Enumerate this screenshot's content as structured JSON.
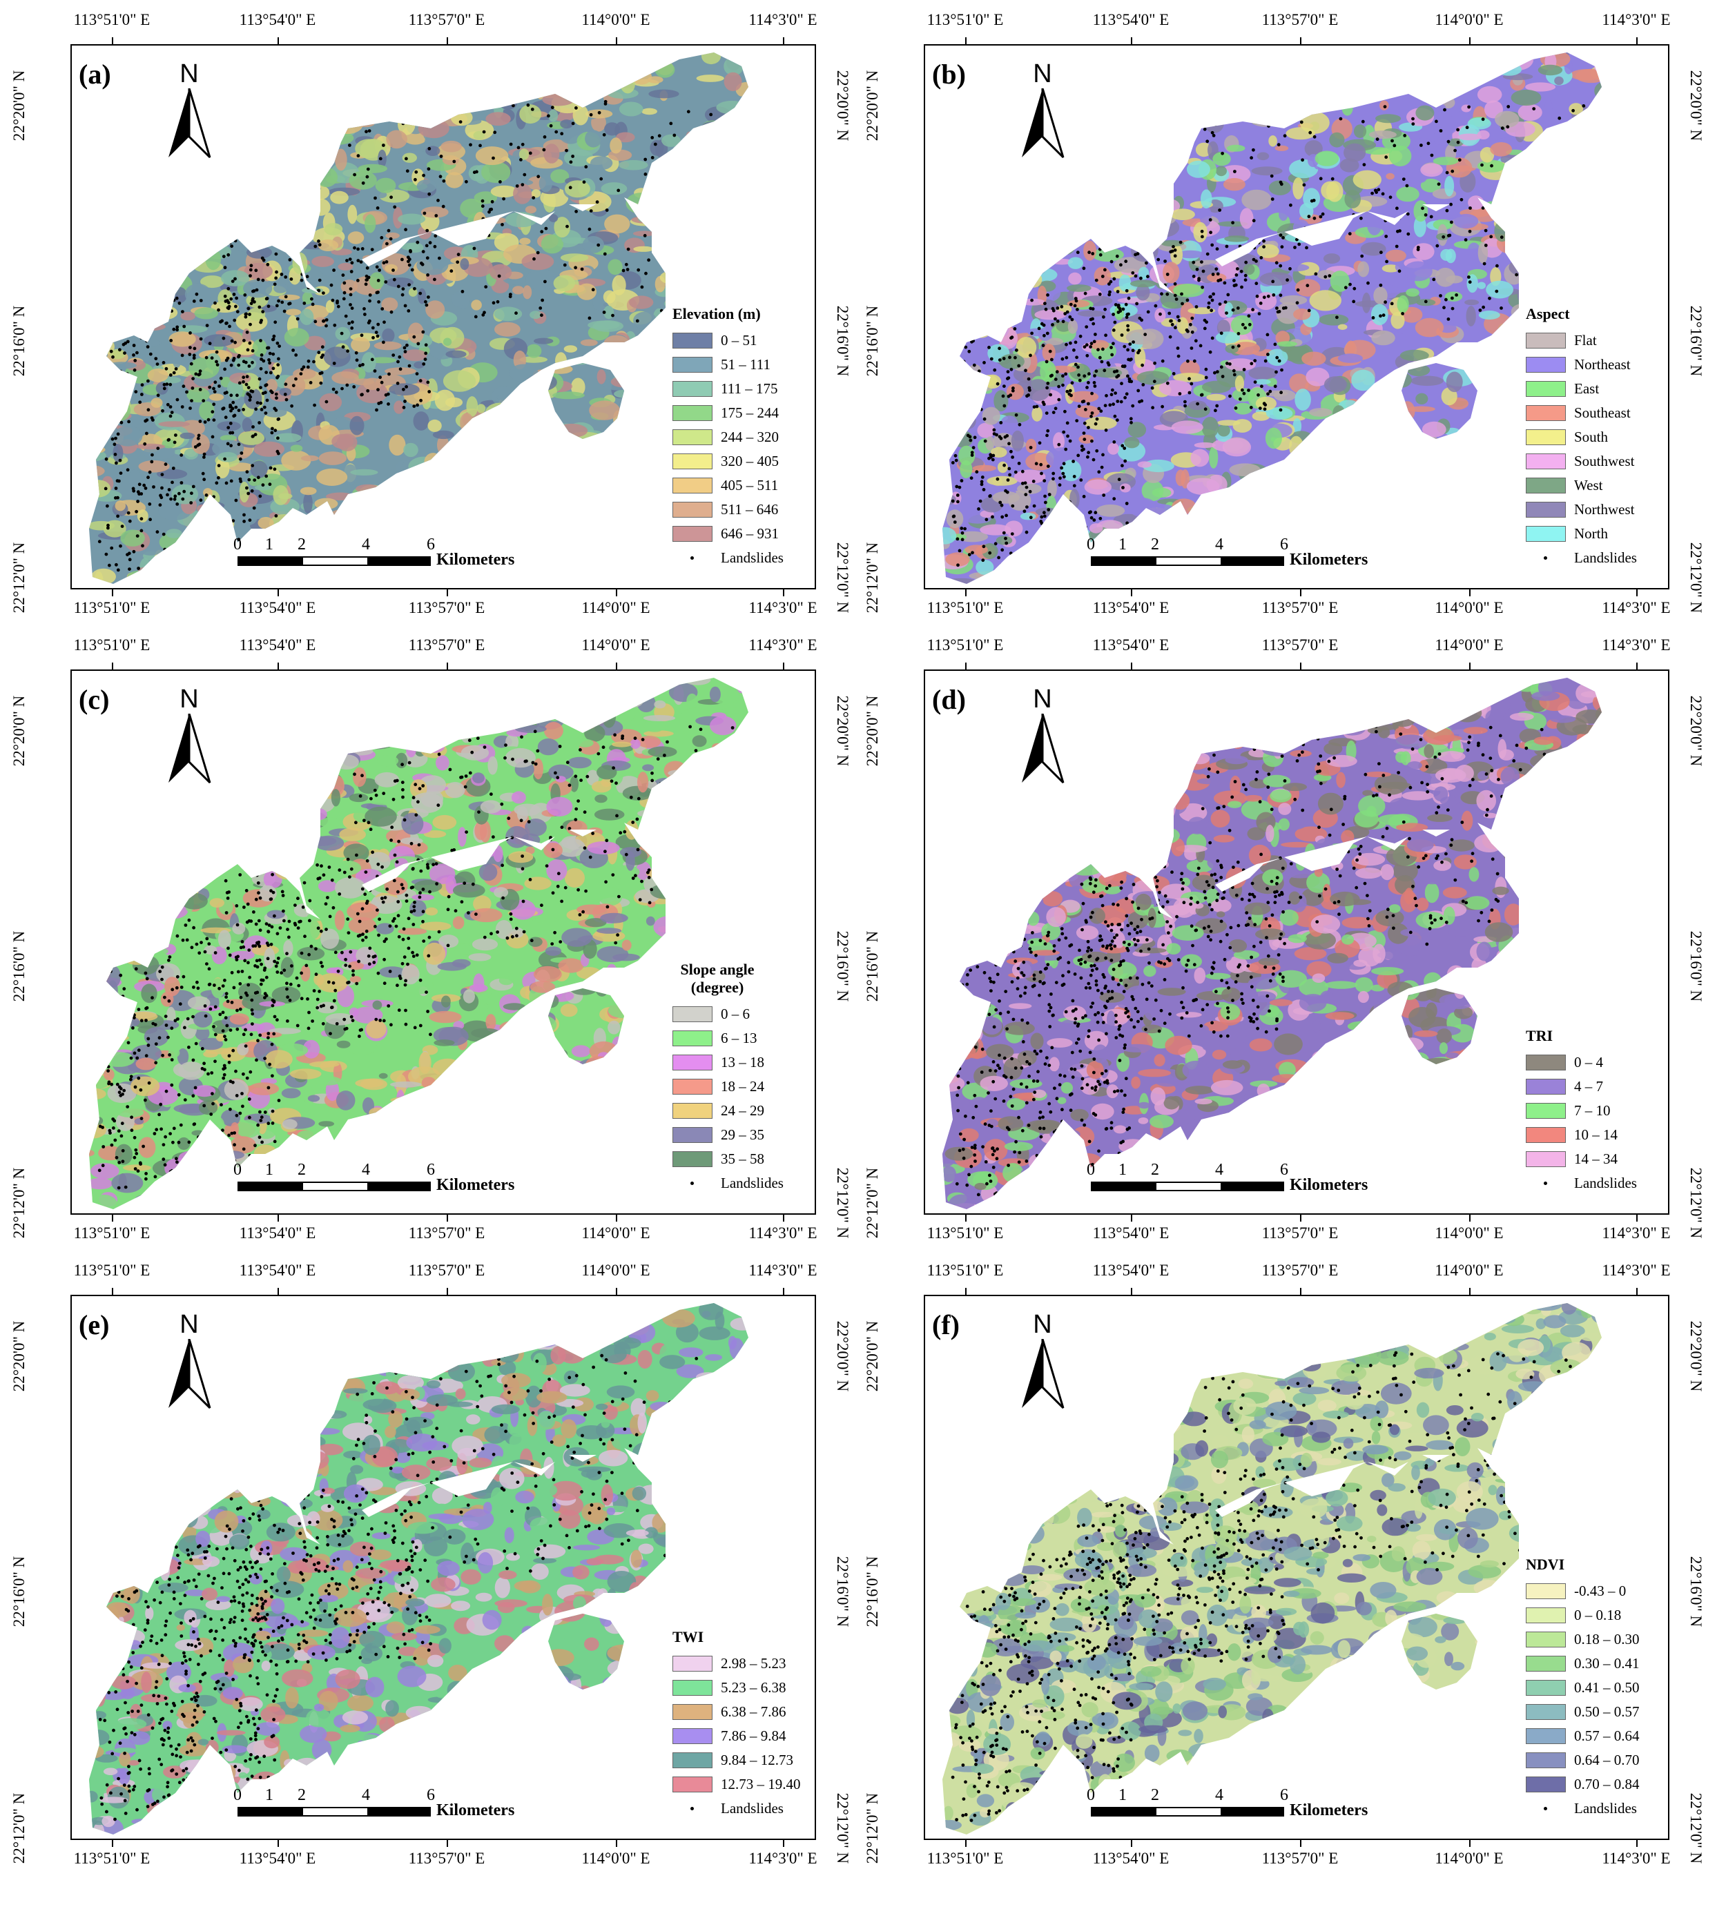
{
  "grid": {
    "lon_labels": [
      "113°51'0\" E",
      "113°54'0\" E",
      "113°57'0\" E",
      "114°0'0\" E",
      "114°3'0\" E"
    ],
    "lat_labels": [
      "22°20'0\" N",
      "22°16'0\" N",
      "22°12'0\" N"
    ]
  },
  "scalebar": {
    "ticks": [
      "0",
      "1",
      "2",
      "4",
      "6"
    ],
    "unit": "Kilometers"
  },
  "north_label": "N",
  "landslides_label": "Landslides",
  "panels": [
    {
      "id": "a",
      "label": "(a)",
      "legend_title": "Elevation (m)",
      "classes": [
        {
          "label": "0 – 51",
          "color": "#6e7fa6"
        },
        {
          "label": "51 – 111",
          "color": "#7fa6b8"
        },
        {
          "label": "111 – 175",
          "color": "#8fcbb3"
        },
        {
          "label": "175 – 244",
          "color": "#92d889"
        },
        {
          "label": "244 – 320",
          "color": "#cfe88a"
        },
        {
          "label": "320 – 405",
          "color": "#f3ee8c"
        },
        {
          "label": "405 – 511",
          "color": "#f1cd86"
        },
        {
          "label": "511 – 646",
          "color": "#dfae8e"
        },
        {
          "label": "646 – 931",
          "color": "#cd9597"
        }
      ]
    },
    {
      "id": "b",
      "label": "(b)",
      "legend_title": "Aspect",
      "classes": [
        {
          "label": "Flat",
          "color": "#c9bcbc"
        },
        {
          "label": "Northeast",
          "color": "#9c8cf2"
        },
        {
          "label": "East",
          "color": "#8ef08a"
        },
        {
          "label": "Southeast",
          "color": "#f59a88"
        },
        {
          "label": "South",
          "color": "#f3f08c"
        },
        {
          "label": "Southwest",
          "color": "#f3b0f0"
        },
        {
          "label": "West",
          "color": "#7ea786"
        },
        {
          "label": "Northwest",
          "color": "#9087b8"
        },
        {
          "label": "North",
          "color": "#8ff4f2"
        }
      ]
    },
    {
      "id": "c",
      "label": "(c)",
      "legend_title": "Slope angle (degree)",
      "classes": [
        {
          "label": "0 – 6",
          "color": "#d2d2cc"
        },
        {
          "label": "6 – 13",
          "color": "#8ef08a"
        },
        {
          "label": "13 – 18",
          "color": "#e48ef0"
        },
        {
          "label": "18 – 24",
          "color": "#f59a8a"
        },
        {
          "label": "24 – 29",
          "color": "#f0d27e"
        },
        {
          "label": "29 – 35",
          "color": "#8a88b6"
        },
        {
          "label": "35 – 58",
          "color": "#6e9a78"
        }
      ]
    },
    {
      "id": "d",
      "label": "(d)",
      "legend_title": "TRI",
      "classes": [
        {
          "label": "0 – 4",
          "color": "#8e887e"
        },
        {
          "label": "4 – 7",
          "color": "#9a82d8"
        },
        {
          "label": "7 – 10",
          "color": "#8ef08a"
        },
        {
          "label": "10 – 14",
          "color": "#f2877e"
        },
        {
          "label": "14 – 34",
          "color": "#f3b4e8"
        }
      ]
    },
    {
      "id": "e",
      "label": "(e)",
      "legend_title": "TWI",
      "classes": [
        {
          "label": "2.98 – 5.23",
          "color": "#f0d2ee"
        },
        {
          "label": "5.23 – 6.38",
          "color": "#7ee49a"
        },
        {
          "label": "6.38 – 7.86",
          "color": "#deb27e"
        },
        {
          "label": "7.86 – 9.84",
          "color": "#a88ef0"
        },
        {
          "label": "9.84 – 12.73",
          "color": "#6ea6a4"
        },
        {
          "label": "12.73 – 19.40",
          "color": "#e88a98"
        }
      ]
    },
    {
      "id": "f",
      "label": "(f)",
      "legend_title": "NDVI",
      "classes": [
        {
          "label": "-0.43 – 0",
          "color": "#f6f2c0"
        },
        {
          "label": "0 – 0.18",
          "color": "#e0f2b0"
        },
        {
          "label": "0.18 – 0.30",
          "color": "#bce898"
        },
        {
          "label": "0.30 – 0.41",
          "color": "#98dc8e"
        },
        {
          "label": "0.41 – 0.50",
          "color": "#8fcfb0"
        },
        {
          "label": "0.50 – 0.57",
          "color": "#8cbcc0"
        },
        {
          "label": "0.57 – 0.64",
          "color": "#8aaac8"
        },
        {
          "label": "0.64 – 0.70",
          "color": "#8890c0"
        },
        {
          "label": "0.70 – 0.84",
          "color": "#6e6ea8"
        }
      ]
    }
  ]
}
